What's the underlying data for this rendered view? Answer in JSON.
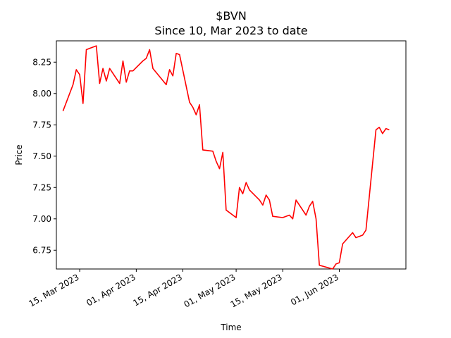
{
  "chart_data": {
    "type": "line",
    "title": "$BVN",
    "subtitle": "Since 10, Mar 2023 to date",
    "xlabel": "Time",
    "ylabel": "Price",
    "xlim": [
      "2023-03-08",
      "2023-06-21"
    ],
    "ylim": [
      6.6,
      8.42
    ],
    "grid": false,
    "line_color": "#ff0000",
    "x_ticks": [
      {
        "date": "2023-03-15",
        "label": "15, Mar 2023"
      },
      {
        "date": "2023-04-01",
        "label": "01, Apr 2023"
      },
      {
        "date": "2023-04-15",
        "label": "15, Apr 2023"
      },
      {
        "date": "2023-05-01",
        "label": "01, May 2023"
      },
      {
        "date": "2023-05-15",
        "label": "15, May 2023"
      },
      {
        "date": "2023-06-01",
        "label": "01, Jun 2023"
      }
    ],
    "y_ticks": [
      {
        "value": 6.75,
        "label": "6.75"
      },
      {
        "value": 7.0,
        "label": "7.00"
      },
      {
        "value": 7.25,
        "label": "7.25"
      },
      {
        "value": 7.5,
        "label": "7.50"
      },
      {
        "value": 7.75,
        "label": "7.75"
      },
      {
        "value": 8.0,
        "label": "8.00"
      },
      {
        "value": 8.25,
        "label": "8.25"
      }
    ],
    "series": [
      {
        "x": [
          "2023-03-10",
          "2023-03-13",
          "2023-03-14",
          "2023-03-15",
          "2023-03-16",
          "2023-03-17",
          "2023-03-20",
          "2023-03-21",
          "2023-03-22",
          "2023-03-23",
          "2023-03-24",
          "2023-03-27",
          "2023-03-28",
          "2023-03-29",
          "2023-03-30",
          "2023-03-31",
          "2023-04-03",
          "2023-04-04",
          "2023-04-05",
          "2023-04-06",
          "2023-04-10",
          "2023-04-11",
          "2023-04-12",
          "2023-04-13",
          "2023-04-14",
          "2023-04-17",
          "2023-04-18",
          "2023-04-19",
          "2023-04-20",
          "2023-04-21",
          "2023-04-24",
          "2023-04-25",
          "2023-04-26",
          "2023-04-27",
          "2023-04-28",
          "2023-05-01",
          "2023-05-02",
          "2023-05-03",
          "2023-05-04",
          "2023-05-05",
          "2023-05-08",
          "2023-05-09",
          "2023-05-10",
          "2023-05-11",
          "2023-05-12",
          "2023-05-15",
          "2023-05-16",
          "2023-05-17",
          "2023-05-18",
          "2023-05-19",
          "2023-05-22",
          "2023-05-23",
          "2023-05-24",
          "2023-05-25",
          "2023-05-26",
          "2023-05-30",
          "2023-05-31",
          "2023-06-01",
          "2023-06-02",
          "2023-06-05",
          "2023-06-06",
          "2023-06-07",
          "2023-06-08",
          "2023-06-09",
          "2023-06-12",
          "2023-06-13",
          "2023-06-14",
          "2023-06-15",
          "2023-06-16"
        ],
        "y": [
          7.86,
          8.07,
          8.19,
          8.15,
          7.92,
          8.35,
          8.38,
          8.08,
          8.2,
          8.1,
          8.2,
          8.08,
          8.26,
          8.09,
          8.18,
          8.18,
          8.26,
          8.28,
          8.35,
          8.2,
          8.07,
          8.19,
          8.14,
          8.32,
          8.31,
          7.93,
          7.89,
          7.83,
          7.91,
          7.55,
          7.54,
          7.46,
          7.4,
          7.53,
          7.07,
          7.01,
          7.25,
          7.2,
          7.29,
          7.23,
          7.15,
          7.11,
          7.19,
          7.15,
          7.02,
          7.01,
          7.02,
          7.03,
          7.0,
          7.15,
          7.03,
          7.1,
          7.14,
          7.0,
          6.63,
          6.6,
          6.64,
          6.65,
          6.8,
          6.89,
          6.85,
          6.86,
          6.87,
          6.91,
          7.71,
          7.73,
          7.68,
          7.72,
          7.71
        ]
      }
    ]
  }
}
